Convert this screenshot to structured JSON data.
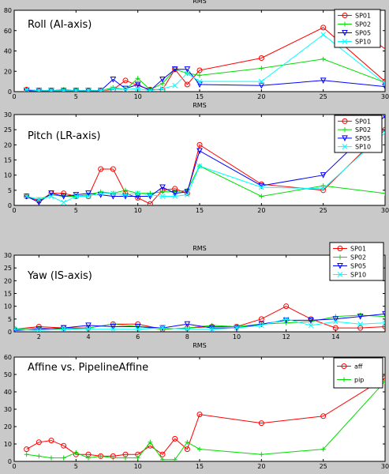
{
  "chart_data": [
    {
      "type": "line",
      "top_title": "RMS",
      "title": "Roll  (AI-axis)",
      "xlim": [
        0,
        30
      ],
      "ylim": [
        0,
        80
      ],
      "xticks": [
        0,
        5,
        10,
        15,
        20,
        25,
        30
      ],
      "yticks": [
        0,
        20,
        40,
        60,
        80
      ],
      "grid": false,
      "legend_position": "top-right",
      "series": [
        {
          "name": "SP01",
          "color": "#ff0000",
          "marker": "circle",
          "x": [
            1,
            2,
            3,
            4,
            5,
            6,
            7,
            8,
            9,
            10,
            11,
            12,
            13,
            14,
            15,
            20,
            25,
            30
          ],
          "y": [
            2,
            1,
            1,
            1,
            1,
            1,
            1,
            2,
            11,
            6,
            2,
            2,
            22,
            7,
            21,
            33,
            63,
            10
          ]
        },
        {
          "name": "SP02",
          "color": "#00dd00",
          "marker": "plus",
          "x": [
            1,
            2,
            3,
            4,
            5,
            6,
            7,
            8,
            9,
            10,
            11,
            12,
            13,
            14,
            15,
            20,
            25,
            30
          ],
          "y": [
            1,
            1,
            1,
            2,
            1,
            1,
            1,
            4,
            2,
            13,
            2,
            8,
            22,
            18,
            16,
            23,
            32,
            9
          ]
        },
        {
          "name": "SP05",
          "color": "#0000ff",
          "marker": "triangle-down",
          "x": [
            1,
            2,
            3,
            4,
            5,
            6,
            7,
            8,
            9,
            10,
            11,
            12,
            13,
            14,
            15,
            20,
            25,
            30
          ],
          "y": [
            1,
            1,
            1,
            1,
            1,
            1,
            1,
            12,
            3,
            7,
            1,
            12,
            22,
            22,
            7,
            6,
            11,
            5
          ]
        },
        {
          "name": "SP10",
          "color": "#00ffff",
          "marker": "x",
          "x": [
            1,
            2,
            3,
            4,
            5,
            6,
            7,
            8,
            9,
            10,
            11,
            12,
            13,
            14,
            15,
            20,
            25,
            30
          ],
          "y": [
            2,
            1,
            1,
            1,
            1,
            1,
            1,
            3,
            2,
            3,
            1,
            3,
            6,
            18,
            10,
            10,
            56,
            8
          ]
        }
      ],
      "extra_lines": [
        {
          "color": "#ff0000",
          "x": [
            28,
            30
          ],
          "y": [
            60,
            42
          ]
        }
      ]
    },
    {
      "type": "line",
      "top_title": "RMS",
      "title": "Pitch (LR-axis)",
      "xlim": [
        0,
        30
      ],
      "ylim": [
        0,
        30
      ],
      "xticks": [
        0,
        5,
        10,
        15,
        20,
        25,
        30
      ],
      "yticks": [
        0,
        5,
        10,
        15,
        20,
        25,
        30
      ],
      "grid": false,
      "legend_position": "top-right",
      "series": [
        {
          "name": "SP01",
          "color": "#ff0000",
          "marker": "circle",
          "x": [
            1,
            2,
            3,
            4,
            5,
            6,
            7,
            8,
            9,
            10,
            11,
            12,
            13,
            14,
            15,
            20,
            25,
            30
          ],
          "y": [
            3,
            1.5,
            4,
            4,
            3,
            3,
            12,
            12,
            4,
            2.5,
            0.5,
            5,
            5.5,
            4,
            20,
            7,
            5,
            25
          ]
        },
        {
          "name": "SP02",
          "color": "#00dd00",
          "marker": "plus",
          "x": [
            1,
            2,
            3,
            4,
            5,
            6,
            7,
            8,
            9,
            10,
            11,
            12,
            13,
            14,
            15,
            20,
            25,
            30
          ],
          "y": [
            3,
            2,
            3.5,
            3,
            3,
            3.5,
            4.5,
            4,
            5,
            4,
            4,
            4.5,
            4.5,
            5,
            13,
            3,
            6.5,
            4
          ]
        },
        {
          "name": "SP05",
          "color": "#0000ff",
          "marker": "triangle-down",
          "x": [
            1,
            2,
            3,
            4,
            5,
            6,
            7,
            8,
            9,
            10,
            11,
            12,
            13,
            14,
            15,
            20,
            25,
            30
          ],
          "y": [
            3,
            1,
            4,
            3,
            3.5,
            4,
            3.5,
            3,
            3,
            3,
            3,
            6,
            4,
            4.5,
            18,
            6.5,
            10,
            29.5
          ]
        },
        {
          "name": "SP10",
          "color": "#00ffff",
          "marker": "x",
          "x": [
            1,
            2,
            3,
            4,
            5,
            6,
            7,
            8,
            9,
            10,
            11,
            12,
            13,
            14,
            15,
            20,
            25,
            30
          ],
          "y": [
            3,
            2,
            3,
            1,
            3,
            3,
            4,
            4,
            3.5,
            4,
            3.5,
            3,
            3,
            3.5,
            13,
            6,
            5.5,
            24
          ]
        }
      ],
      "extra_lines": []
    },
    {
      "type": "line",
      "top_title": "RMS",
      "title": "Yaw (IS-axis)",
      "xlim": [
        1,
        16
      ],
      "ylim": [
        0,
        30
      ],
      "xticks": [
        2,
        4,
        6,
        8,
        10,
        12,
        14
      ],
      "yticks": [
        0,
        5,
        10,
        15,
        20,
        25,
        30
      ],
      "grid": false,
      "legend_position": "top-right",
      "series": [
        {
          "name": "SP01",
          "color": "#ff0000",
          "marker": "circle",
          "x": [
            1,
            2,
            3,
            4,
            5,
            6,
            7,
            8,
            9,
            10,
            11,
            12,
            13,
            14,
            15,
            16
          ],
          "y": [
            1,
            2,
            1.5,
            1.5,
            3,
            3,
            1,
            1.5,
            2,
            2,
            5,
            10,
            5,
            1.5,
            1.5,
            2
          ]
        },
        {
          "name": "SP02",
          "color": "#00dd00",
          "marker": "plus",
          "x": [
            1,
            2,
            3,
            4,
            5,
            6,
            7,
            8,
            9,
            10,
            11,
            12,
            13,
            14,
            15,
            16
          ],
          "y": [
            1,
            1.5,
            1,
            1.5,
            3,
            2,
            1,
            1.5,
            2.5,
            2,
            3,
            3.5,
            4,
            6,
            6.5,
            6
          ]
        },
        {
          "name": "SP05",
          "color": "#0000ff",
          "marker": "triangle-down",
          "x": [
            1,
            2,
            3,
            4,
            5,
            6,
            7,
            8,
            9,
            10,
            11,
            12,
            13,
            14,
            15,
            16
          ],
          "y": [
            0.5,
            1,
            1.5,
            2.5,
            2,
            2,
            1.5,
            3,
            1.5,
            1.5,
            3,
            4.5,
            4.5,
            5,
            6,
            7
          ]
        },
        {
          "name": "SP10",
          "color": "#00ffff",
          "marker": "x",
          "x": [
            1,
            2,
            3,
            4,
            5,
            6,
            7,
            8,
            9,
            10,
            11,
            12,
            13,
            14,
            15,
            16
          ],
          "y": [
            1,
            0.5,
            1,
            1,
            1,
            1,
            1.5,
            1,
            1,
            1.5,
            2.5,
            5,
            2.5,
            4,
            3,
            3.5
          ]
        }
      ],
      "extra_lines": []
    },
    {
      "type": "line",
      "top_title": "RMS",
      "title": "Affine vs. PipelineAffine",
      "xlim": [
        0,
        30
      ],
      "ylim": [
        0,
        60
      ],
      "xticks": [
        0,
        5,
        10,
        15,
        20,
        25,
        30
      ],
      "yticks": [
        0,
        10,
        20,
        30,
        40,
        50,
        60
      ],
      "grid": false,
      "legend_position": "top-right",
      "series": [
        {
          "name": "aff",
          "color": "#ff0000",
          "marker": "circle",
          "x": [
            1,
            2,
            3,
            4,
            5,
            6,
            7,
            8,
            9,
            10,
            11,
            12,
            13,
            14,
            15,
            20,
            25,
            30
          ],
          "y": [
            7,
            11,
            12,
            9,
            4,
            4,
            3,
            3,
            4,
            4,
            9,
            4,
            13,
            7,
            27,
            22,
            26,
            48
          ]
        },
        {
          "name": "pip",
          "color": "#00dd00",
          "marker": "plus",
          "x": [
            1,
            2,
            3,
            4,
            5,
            6,
            7,
            8,
            9,
            10,
            11,
            12,
            13,
            14,
            15,
            20,
            25,
            30
          ],
          "y": [
            4,
            3,
            2,
            2,
            5,
            2,
            3,
            2,
            2,
            2,
            11,
            1,
            1,
            11,
            7,
            4,
            7,
            46
          ]
        }
      ],
      "extra_lines": []
    }
  ]
}
